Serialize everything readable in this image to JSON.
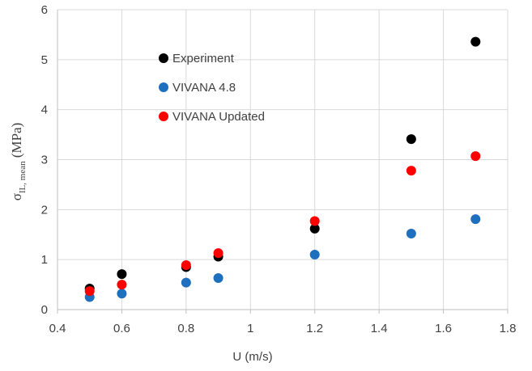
{
  "chart_data": {
    "type": "scatter",
    "title": "",
    "xlabel": "U (m/s)",
    "ylabel": {
      "main": "σ",
      "subscript": "IL, mean",
      "unit": " (MPa)"
    },
    "xlim": [
      0.4,
      1.8
    ],
    "ylim": [
      0,
      6
    ],
    "xticks": [
      "0.4",
      "0.6",
      "0.8",
      "1",
      "1.2",
      "1.4",
      "1.6",
      "1.8"
    ],
    "yticks": [
      "0",
      "1",
      "2",
      "3",
      "4",
      "5",
      "6"
    ],
    "grid": "vertical and horizontal",
    "legend_position": "upper-left inside plot",
    "series": [
      {
        "name": "Experiment",
        "color": "#000000",
        "points": [
          [
            0.5,
            0.42
          ],
          [
            0.6,
            0.71
          ],
          [
            0.8,
            0.85
          ],
          [
            0.9,
            1.06
          ],
          [
            1.2,
            1.62
          ],
          [
            1.5,
            3.41
          ],
          [
            1.7,
            5.36
          ]
        ]
      },
      {
        "name": "VIVANA 4.8",
        "color": "#1f6fbf",
        "points": [
          [
            0.5,
            0.25
          ],
          [
            0.6,
            0.32
          ],
          [
            0.8,
            0.54
          ],
          [
            0.9,
            0.63
          ],
          [
            1.2,
            1.1
          ],
          [
            1.5,
            1.52
          ],
          [
            1.7,
            1.81
          ]
        ]
      },
      {
        "name": "VIVANA Updated",
        "color": "#ff0000",
        "points": [
          [
            0.5,
            0.37
          ],
          [
            0.6,
            0.5
          ],
          [
            0.8,
            0.89
          ],
          [
            0.9,
            1.13
          ],
          [
            1.2,
            1.77
          ],
          [
            1.5,
            2.78
          ],
          [
            1.7,
            3.07
          ]
        ]
      }
    ]
  }
}
